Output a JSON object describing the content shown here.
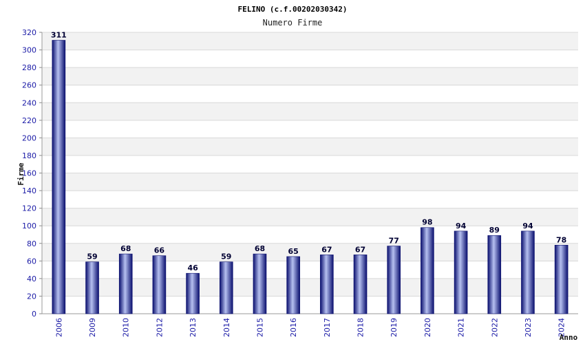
{
  "chart_data": {
    "type": "bar",
    "title": "FELINO (c.f.00202030342)",
    "subtitle": "Numero Firme",
    "ylabel": "Firme",
    "xlabel": "Anno",
    "categories": [
      "2006",
      "2009",
      "2010",
      "2012",
      "2013",
      "2014",
      "2015",
      "2016",
      "2017",
      "2018",
      "2019",
      "2020",
      "2021",
      "2022",
      "2023",
      "2024"
    ],
    "values": [
      311,
      59,
      68,
      66,
      46,
      59,
      68,
      65,
      67,
      67,
      77,
      98,
      94,
      89,
      94,
      78
    ],
    "ylim": [
      0,
      320
    ],
    "yticks": [
      0,
      20,
      40,
      60,
      80,
      100,
      120,
      140,
      160,
      180,
      200,
      220,
      240,
      260,
      280,
      300,
      320
    ],
    "grid": true,
    "colors": {
      "bar_dark": "#0a0f6e",
      "bar_light": "#b6c0f0",
      "tick_text": "#1a1aa6",
      "band": "#f2f2f2"
    }
  }
}
